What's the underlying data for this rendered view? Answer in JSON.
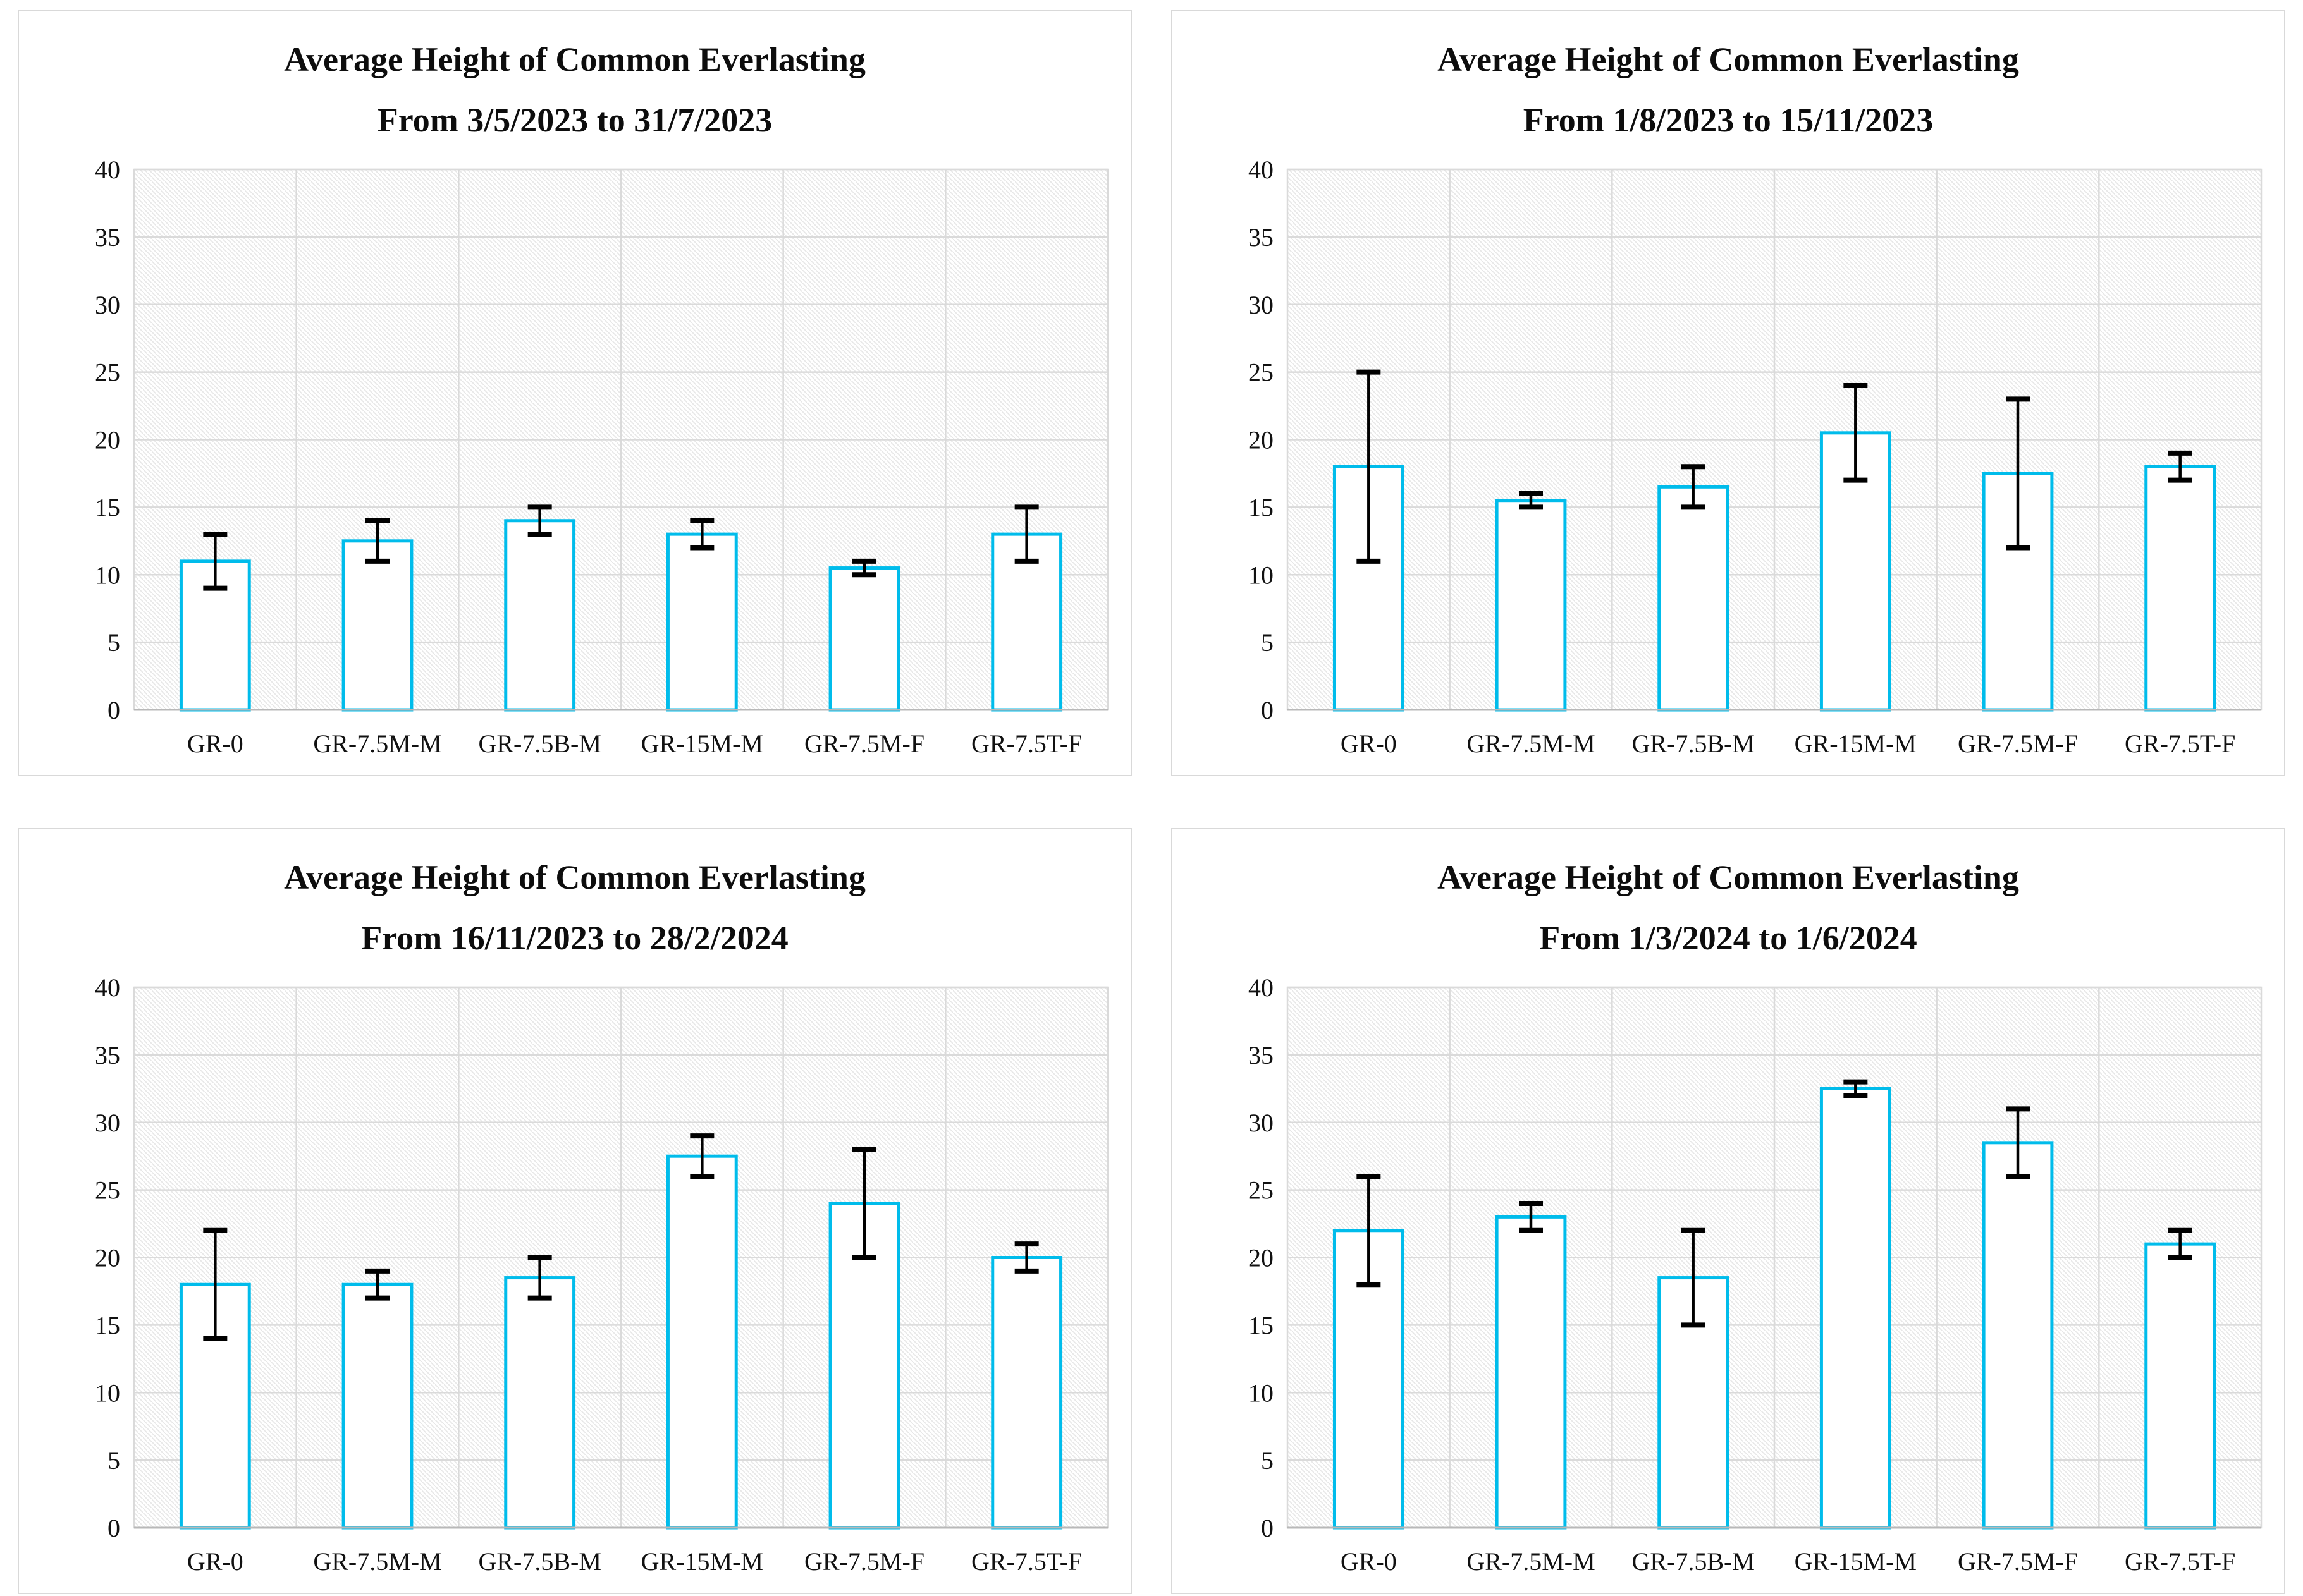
{
  "styles": {
    "bar_fill": "#ffffff",
    "bar_border_color": "#00bceb",
    "error_color": "#000000",
    "grid_color": "#dadada",
    "axis_color": "#b8b8b8",
    "hatch_color": "#e7e7e7",
    "panel_border": "#d9d9d9",
    "text_color": "#111111"
  },
  "chart_data": [
    {
      "type": "bar",
      "title": "Average Height of Common Everlasting",
      "subtitle": "From 3/5/2023 to 31/7/2023",
      "categories": [
        "GR-0",
        "GR-7.5M-M",
        "GR-7.5B-M",
        "GR-15M-M",
        "GR-7.5M-F",
        "GR-7.5T-F"
      ],
      "values": [
        11,
        12.5,
        14,
        13,
        10.5,
        13
      ],
      "error_low": [
        9,
        11,
        13,
        12,
        10,
        11
      ],
      "error_high": [
        13,
        14,
        15,
        14,
        11,
        15
      ],
      "ylim": [
        0,
        40
      ],
      "ytick_step": 5,
      "yticks": [
        0,
        5,
        10,
        15,
        20,
        25,
        30,
        35,
        40
      ],
      "grid": true,
      "legend": false,
      "xlabel": "",
      "ylabel": ""
    },
    {
      "type": "bar",
      "title": "Average Height of Common Everlasting",
      "subtitle": "From 1/8/2023 to 15/11/2023",
      "categories": [
        "GR-0",
        "GR-7.5M-M",
        "GR-7.5B-M",
        "GR-15M-M",
        "GR-7.5M-F",
        "GR-7.5T-F"
      ],
      "values": [
        18,
        15.5,
        16.5,
        20.5,
        17.5,
        18
      ],
      "error_low": [
        11,
        15,
        15,
        17,
        12,
        17
      ],
      "error_high": [
        25,
        16,
        18,
        24,
        23,
        19
      ],
      "ylim": [
        0,
        40
      ],
      "ytick_step": 5,
      "yticks": [
        0,
        5,
        10,
        15,
        20,
        25,
        30,
        35,
        40
      ],
      "grid": true,
      "legend": false,
      "xlabel": "",
      "ylabel": ""
    },
    {
      "type": "bar",
      "title": "Average Height of Common Everlasting",
      "subtitle": "From 16/11/2023 to 28/2/2024",
      "categories": [
        "GR-0",
        "GR-7.5M-M",
        "GR-7.5B-M",
        "GR-15M-M",
        "GR-7.5M-F",
        "GR-7.5T-F"
      ],
      "values": [
        18,
        18,
        18.5,
        27.5,
        24,
        20
      ],
      "error_low": [
        14,
        17,
        17,
        26,
        20,
        19
      ],
      "error_high": [
        22,
        19,
        20,
        29,
        28,
        21
      ],
      "ylim": [
        0,
        40
      ],
      "ytick_step": 5,
      "yticks": [
        0,
        5,
        10,
        15,
        20,
        25,
        30,
        35,
        40
      ],
      "grid": true,
      "legend": false,
      "xlabel": "",
      "ylabel": ""
    },
    {
      "type": "bar",
      "title": "Average Height of Common Everlasting",
      "subtitle": "From 1/3/2024 to 1/6/2024",
      "categories": [
        "GR-0",
        "GR-7.5M-M",
        "GR-7.5B-M",
        "GR-15M-M",
        "GR-7.5M-F",
        "GR-7.5T-F"
      ],
      "values": [
        22,
        23,
        18.5,
        32.5,
        28.5,
        21
      ],
      "error_low": [
        18,
        22,
        15,
        32,
        26,
        20
      ],
      "error_high": [
        26,
        24,
        22,
        33,
        31,
        22
      ],
      "ylim": [
        0,
        40
      ],
      "ytick_step": 5,
      "yticks": [
        0,
        5,
        10,
        15,
        20,
        25,
        30,
        35,
        40
      ],
      "grid": true,
      "legend": false,
      "xlabel": "",
      "ylabel": ""
    }
  ]
}
